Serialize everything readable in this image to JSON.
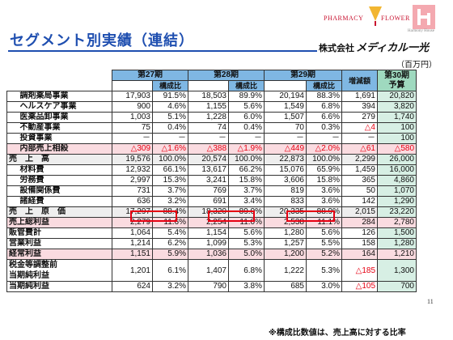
{
  "header": {
    "title": "セグメント別実績（連結）",
    "logo_pharmacy": "PHARMACY",
    "logo_flower": "FLOWER",
    "logo_harmony": "Harmony House",
    "company_prefix": "株式会社",
    "company_brand": "メディカル一光",
    "unit": "（百万円）"
  },
  "columns": {
    "p27": "第27期",
    "p28": "第28期",
    "p29": "第29期",
    "p30_line1": "第30期",
    "p30_line2": "予算",
    "ratio": "構成比",
    "diff": "増減額"
  },
  "rows": [
    {
      "label": "調剤薬局事業",
      "indent": true,
      "v27": "17,903",
      "r27": "91.5%",
      "v28": "18,503",
      "r28": "89.9%",
      "v29": "20,194",
      "r29": "88.3%",
      "diff": "1,691",
      "p30": "20,820"
    },
    {
      "label": "ヘルスケア事業",
      "indent": true,
      "v27": "900",
      "r27": "4.6%",
      "v28": "1,155",
      "r28": "5.6%",
      "v29": "1,549",
      "r29": "6.8%",
      "diff": "394",
      "p30": "3,820"
    },
    {
      "label": "医薬品卸事業",
      "indent": true,
      "v27": "1,003",
      "r27": "5.1%",
      "v28": "1,228",
      "r28": "6.0%",
      "v29": "1,507",
      "r29": "6.6%",
      "diff": "279",
      "p30": "1,740"
    },
    {
      "label": "不動産事業",
      "indent": true,
      "v27": "75",
      "r27": "0.4%",
      "v28": "74",
      "r28": "0.4%",
      "v29": "70",
      "r29": "0.3%",
      "diff": "△4",
      "p30": "100"
    },
    {
      "label": "投資事業",
      "indent": true,
      "v27": "－",
      "r27": "－",
      "v28": "－",
      "r28": "－",
      "v29": "－",
      "r29": "－",
      "diff": "－",
      "p30": "100"
    },
    {
      "label": "内部売上相殺",
      "indent": true,
      "v27": "△309",
      "r27": "△1.6%",
      "v28": "△388",
      "r28": "△1.9%",
      "v29": "△449",
      "r29": "△2.0%",
      "diff": "△61",
      "p30": "△580"
    },
    {
      "label": "売　上　高",
      "indent": false,
      "v27": "19,576",
      "r27": "100.0%",
      "v28": "20,574",
      "r28": "100.0%",
      "v29": "22,873",
      "r29": "100.0%",
      "diff": "2,299",
      "p30": "26,000"
    },
    {
      "label": "材料費",
      "indent": true,
      "v27": "12,932",
      "r27": "66.1%",
      "v28": "13,617",
      "r28": "66.2%",
      "v29": "15,076",
      "r29": "65.9%",
      "diff": "1,459",
      "p30": "16,000"
    },
    {
      "label": "労務費",
      "indent": true,
      "v27": "2,997",
      "r27": "15.3%",
      "v28": "3,241",
      "r28": "15.8%",
      "v29": "3,606",
      "r29": "15.8%",
      "diff": "365",
      "p30": "4,860"
    },
    {
      "label": "設備関係費",
      "indent": true,
      "v27": "731",
      "r27": "3.7%",
      "v28": "769",
      "r28": "3.7%",
      "v29": "819",
      "r29": "3.6%",
      "diff": "50",
      "p30": "1,070"
    },
    {
      "label": "諸経費",
      "indent": true,
      "v27": "636",
      "r27": "3.2%",
      "v28": "691",
      "r28": "3.4%",
      "v29": "833",
      "r29": "3.6%",
      "diff": "142",
      "p30": "1,290"
    },
    {
      "label": "売　上　原　価",
      "indent": false,
      "v27": "17,297",
      "r27": "88.4%",
      "v28": "18,320",
      "r28": "89.0%",
      "v29": "20,335",
      "r29": "88.9%",
      "diff": "2,015",
      "p30": "23,220"
    },
    {
      "label": "売上総利益",
      "indent": false,
      "v27": "2,279",
      "r27": "11.6%",
      "v28": "2,254",
      "r28": "11.0%",
      "v29": "2,538",
      "r29": "11.1%",
      "diff": "284",
      "p30": "2,780"
    },
    {
      "label": "販管費計",
      "indent": false,
      "v27": "1,064",
      "r27": "5.4%",
      "v28": "1,154",
      "r28": "5.6%",
      "v29": "1,280",
      "r29": "5.6%",
      "diff": "126",
      "p30": "1,500"
    },
    {
      "label": "営業利益",
      "indent": false,
      "v27": "1,214",
      "r27": "6.2%",
      "v28": "1,099",
      "r28": "5.3%",
      "v29": "1,257",
      "r29": "5.5%",
      "diff": "158",
      "p30": "1,280"
    },
    {
      "label": "経常利益",
      "indent": false,
      "v27": "1,151",
      "r27": "5.9%",
      "v28": "1,036",
      "r28": "5.0%",
      "v29": "1,200",
      "r29": "5.2%",
      "diff": "164",
      "p30": "1,210"
    },
    {
      "label": "税金等調整前",
      "label2": "当期純利益",
      "indent": false,
      "v27": "1,201",
      "r27": "6.1%",
      "v28": "1,407",
      "r28": "6.8%",
      "v29": "1,222",
      "r29": "5.3%",
      "diff": "△185",
      "p30": "1,300"
    },
    {
      "label": "当期純利益",
      "indent": false,
      "v27": "624",
      "r27": "3.2%",
      "v28": "790",
      "r28": "3.8%",
      "v29": "685",
      "r29": "3.0%",
      "diff": "△105",
      "p30": "700"
    }
  ],
  "footer": {
    "page_number": "11",
    "note": "※構成比数値は、売上高に対する比率"
  },
  "colors": {
    "title_blue": "#1f4fb0",
    "header_blue": "#7fb7e3",
    "budget_green": "#9fd9bf",
    "highlight_pink": "#fadbe0",
    "negative_red": "#e60012"
  }
}
